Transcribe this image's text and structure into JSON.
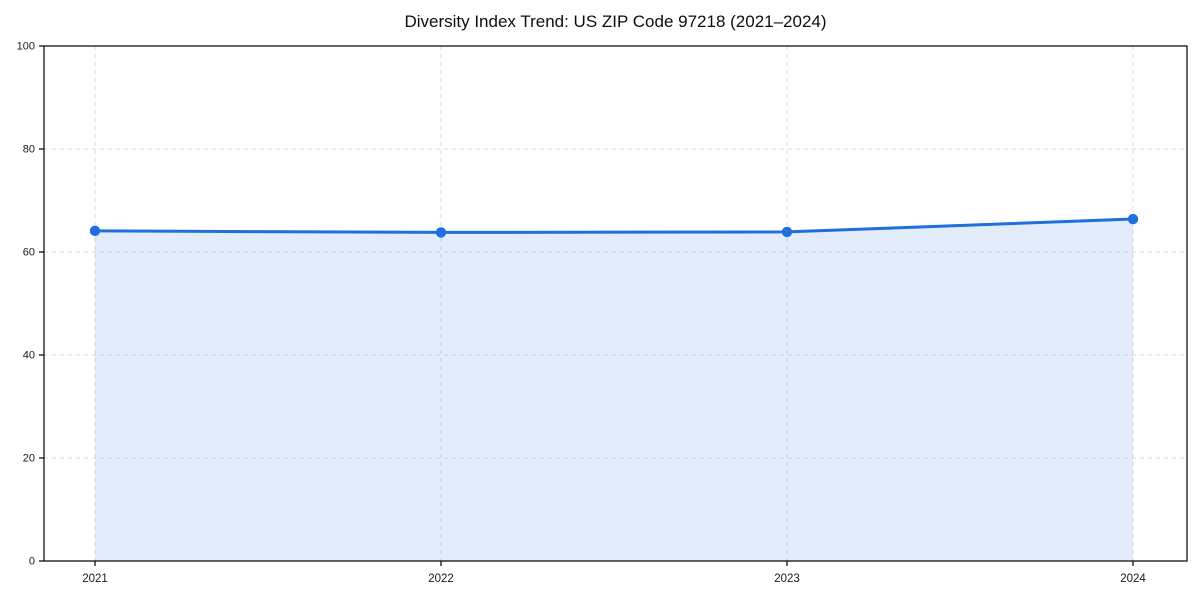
{
  "title": "Diversity Index Trend: US ZIP Code 97218 (2021–2024)",
  "colors": {
    "background": "#ffffff",
    "line": "#1f6fdd",
    "marker": "#1f6fdd",
    "fill": "#1f6fdd",
    "fill_opacity": 0.13,
    "grid": "#d9d9d9",
    "axis": "#000000",
    "tick_text": "#1a1a1a",
    "title_text": "#0d0d0d"
  },
  "chart_data": {
    "type": "area",
    "title": "Diversity Index Trend: US ZIP Code 97218 (2021–2024)",
    "x": [
      "2021",
      "2022",
      "2023",
      "2024"
    ],
    "series": [
      {
        "name": "Diversity Index",
        "values": [
          64.1,
          63.8,
          63.9,
          66.4
        ]
      }
    ],
    "xlabel": "",
    "ylabel": "",
    "ylim": [
      0,
      100
    ],
    "yticks": [
      0,
      20,
      40,
      60,
      80,
      100
    ],
    "grid": "dashed, horizontal and vertical",
    "legend": false,
    "marker": "circle",
    "plot_border": "full box"
  }
}
